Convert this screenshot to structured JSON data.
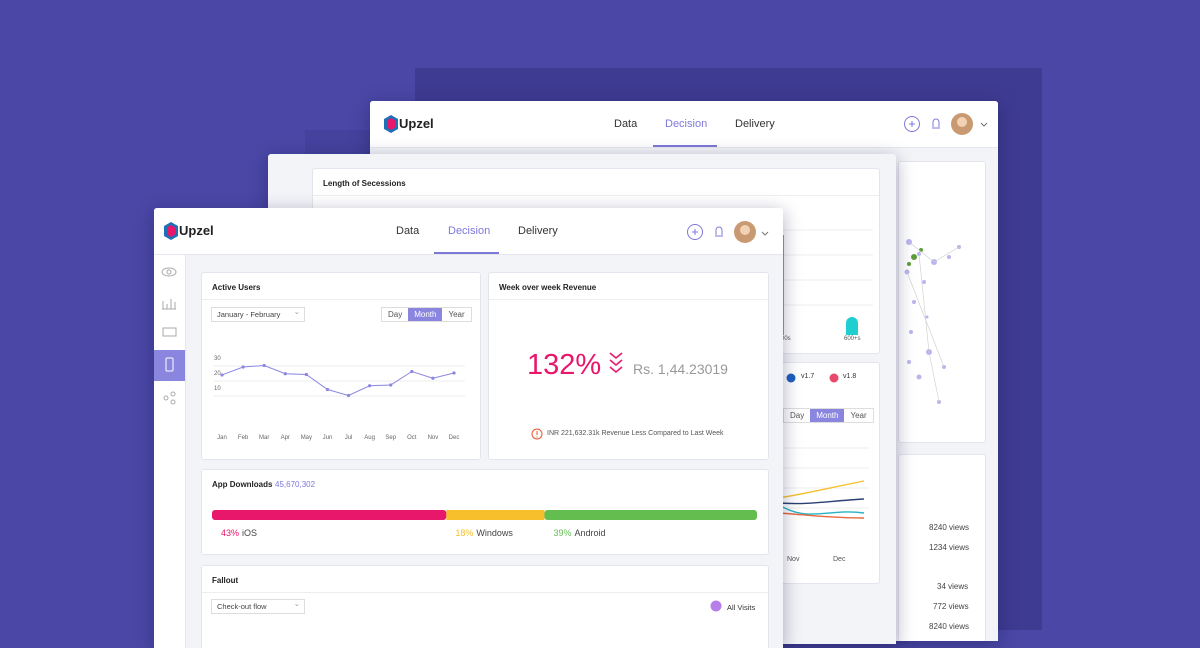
{
  "brand": "Upzel",
  "nav": [
    "Data",
    "Decision",
    "Delivery"
  ],
  "back_window": {
    "card_title": "Length of Secessions",
    "bar_labels": [
      "00s",
      "600+s"
    ],
    "legend": [
      "v1.7",
      "v1.8"
    ],
    "toggle": [
      "Day",
      "Month",
      "Year"
    ],
    "x_labels": [
      "Nov",
      "Dec"
    ],
    "views": [
      "8240 views",
      "1234 views",
      "34 views",
      "772 views",
      "8240 views"
    ]
  },
  "active_users": {
    "range": "January - February",
    "toggle": [
      "Day",
      "Month",
      "Year"
    ]
  },
  "revenue": {
    "title": "Week over week Revenue",
    "percent": "132%",
    "amount": "Rs. 1,44.23019",
    "note": "INR 221,632.31k Revenue Less Compared to Last Week"
  },
  "fallout": {
    "title": "Fallout",
    "flow": "Check-out flow",
    "legend": "All Visits"
  },
  "chart_data": [
    {
      "type": "line",
      "title": "Active Users",
      "categories": [
        "Jan",
        "Feb",
        "Mar",
        "Apr",
        "May",
        "Jun",
        "Jul",
        "Aug",
        "Sep",
        "Oct",
        "Nov",
        "Dec"
      ],
      "values": [
        18.7,
        24,
        25,
        19.5,
        19,
        9,
        5,
        11.5,
        12,
        21,
        16.5,
        20
      ],
      "ylim": [
        0,
        30
      ],
      "yticks": [
        10,
        20,
        30
      ],
      "grid": true,
      "color": "#8b86e0"
    },
    {
      "type": "stacked-bar",
      "title": "App Downloads",
      "subtitle": "45,670,302",
      "xlim": [
        0,
        100
      ],
      "series": [
        {
          "name": "iOS",
          "color": "#e8176c",
          "values": [
            43
          ],
          "value_labels": [
            "43%"
          ]
        },
        {
          "name": "Windows",
          "color": "#f6bf2b",
          "values": [
            18
          ],
          "value_labels": [
            "18%"
          ]
        },
        {
          "name": "Android",
          "color": "#63be4f",
          "values": [
            39
          ],
          "value_labels": [
            "39%"
          ]
        }
      ]
    }
  ]
}
